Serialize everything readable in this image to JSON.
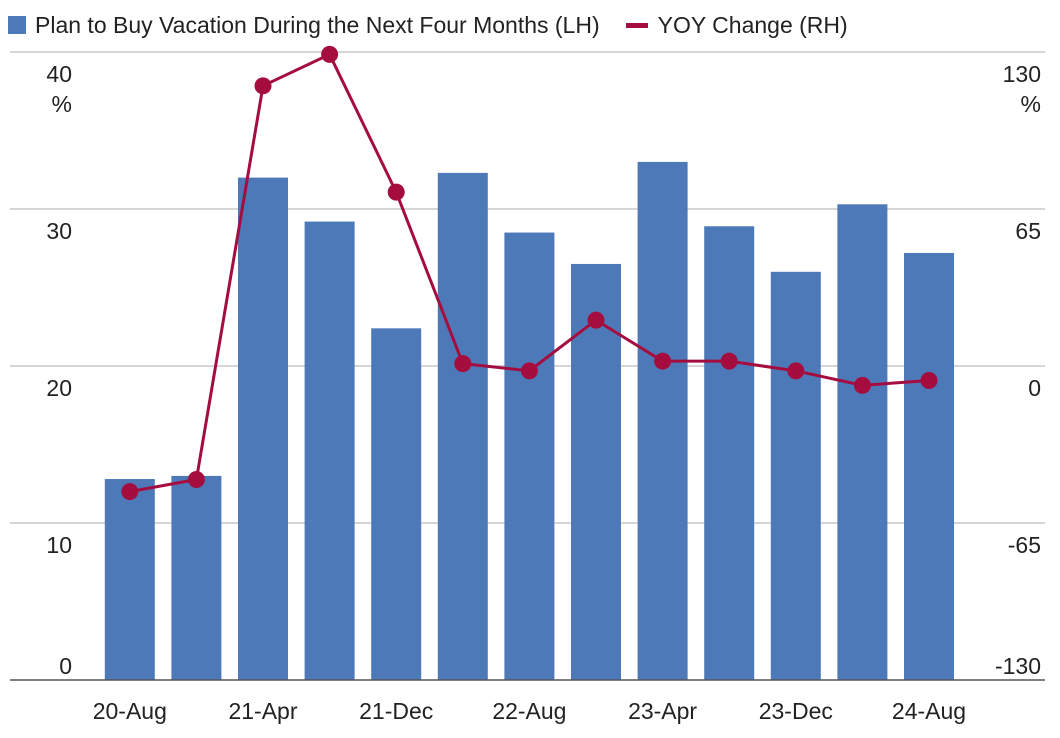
{
  "colors": {
    "bar": "#4e79b9",
    "line": "#a50d3f",
    "grid": "#c8c8c8",
    "axis": "#555555"
  },
  "chart_data": {
    "type": "bar",
    "legend_position": "top-left",
    "grid": true,
    "series": [
      {
        "name": "Plan to Buy Vacation During the Next Four Months (LH)",
        "type": "bar",
        "axis": "left",
        "values": [
          12.8,
          13.0,
          32.0,
          29.2,
          22.4,
          32.3,
          28.5,
          26.5,
          33.0,
          28.9,
          26.0,
          30.3,
          27.2
        ]
      },
      {
        "name": "YOY Change (RH)",
        "type": "line",
        "axis": "right",
        "values": [
          -52,
          -47,
          116,
          129,
          72,
          1,
          -2,
          19,
          2,
          2,
          -2,
          -8,
          -6
        ]
      }
    ],
    "x_tick_labels": [
      "20-Aug",
      "",
      "21-Apr",
      "",
      "21-Dec",
      "",
      "22-Aug",
      "",
      "23-Apr",
      "",
      "23-Dec",
      "",
      "24-Aug"
    ],
    "left_axis": {
      "ylim": [
        0,
        40
      ],
      "ticks": [
        "0",
        "10",
        "20",
        "30",
        "40"
      ],
      "unit": "%"
    },
    "right_axis": {
      "ylim": [
        -130,
        130
      ],
      "ticks": [
        "-130",
        "-65",
        "0",
        "65",
        "130"
      ],
      "unit": "%"
    }
  }
}
